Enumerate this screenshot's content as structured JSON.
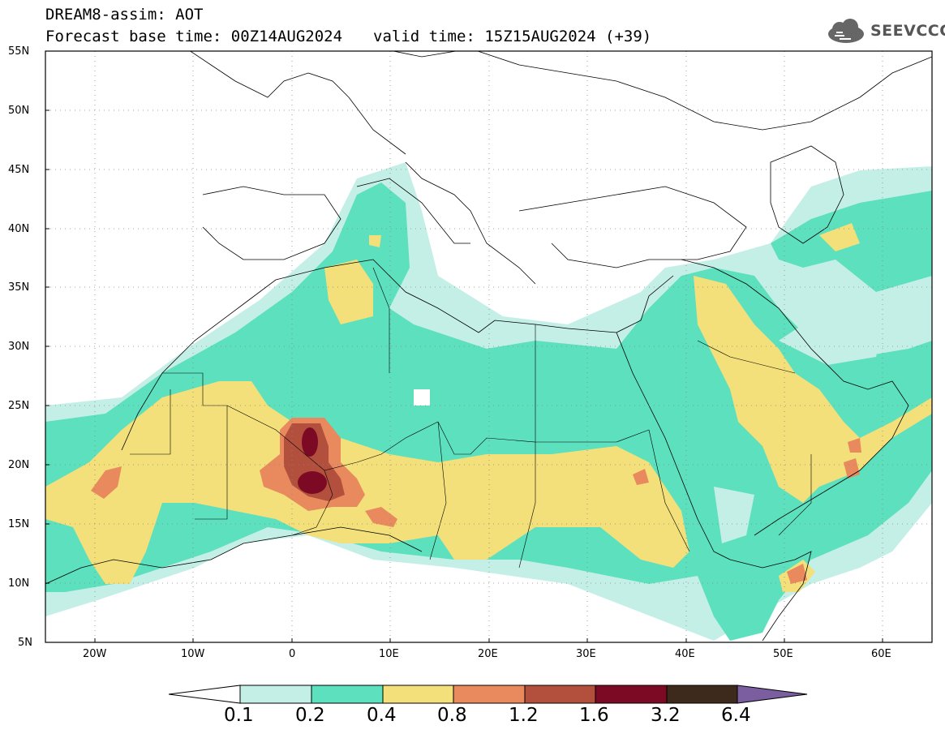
{
  "title": {
    "line1": "DREAM8-assim: AOT",
    "base_time": "Forecast base time: 00Z14AUG2024",
    "valid_time": "valid time: 15Z15AUG2024 (+39)"
  },
  "logo": {
    "text": "SEEVCCC",
    "icon": "cloud-icon"
  },
  "map": {
    "lat_labels": [
      "55N",
      "50N",
      "45N",
      "40N",
      "35N",
      "30N",
      "25N",
      "20N",
      "15N",
      "10N",
      "5N"
    ],
    "lon_labels": [
      "20W",
      "10W",
      "0",
      "10E",
      "20E",
      "30E",
      "40E",
      "50E",
      "60E"
    ],
    "lon_range": [
      -25,
      65
    ],
    "lat_range": [
      5,
      55
    ],
    "gridlines": "dotted"
  },
  "colorbar": {
    "labels": [
      "0.1",
      "0.2",
      "0.4",
      "0.8",
      "1.2",
      "1.6",
      "3.2",
      "6.4"
    ],
    "colors": [
      "#ffffff",
      "#c4efe6",
      "#5de0bd",
      "#f3e07a",
      "#e8895e",
      "#b3503d",
      "#7d0a24",
      "#3e2a1c",
      "#7a5ea0"
    ]
  }
}
